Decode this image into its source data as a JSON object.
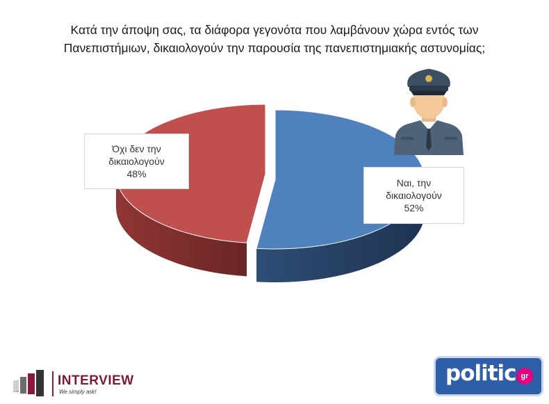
{
  "title_lines": [
    "Κατά την άποψη σας, τα διάφορα γεγονότα που λαμβάνουν χώρα εντός των",
    "Πανεπιστήμιων, δικαιολογούν την παρουσία της πανεπιστημιακής αστυνομίας;"
  ],
  "chart_data": {
    "type": "pie",
    "title": "Κατά την άποψη σας, τα διάφορα γεγονότα που λαμβάνουν χώρα εντός των Πανεπιστήμιων, δικαιολογούν την παρουσία της πανεπιστημιακής αστυνομίας;",
    "categories": [
      "Ναι, την δικαιολογούν",
      "Όχι δεν την δικαιολογούν"
    ],
    "values": [
      52,
      48
    ],
    "unit": "%",
    "colors": [
      "#4f81bd",
      "#c0504d"
    ],
    "labels": {
      "yes": {
        "line1": "Ναι, την",
        "line2": "δικαιολογούν",
        "pct": "52%"
      },
      "no": {
        "line1": "Όχι δεν την",
        "line2": "δικαιολογούν",
        "pct": "48%"
      }
    },
    "style": "3D exploded pie"
  },
  "logos": {
    "interview": {
      "name": "INTERVIEW",
      "tagline": "We simply ask!",
      "color": "#7a1a3a"
    },
    "politic": {
      "word": "politic",
      "badge": "gr",
      "color": "#2f5ea8",
      "badge_color": "#e6007e"
    }
  },
  "icons": {
    "illustration": "police-officer-icon"
  }
}
